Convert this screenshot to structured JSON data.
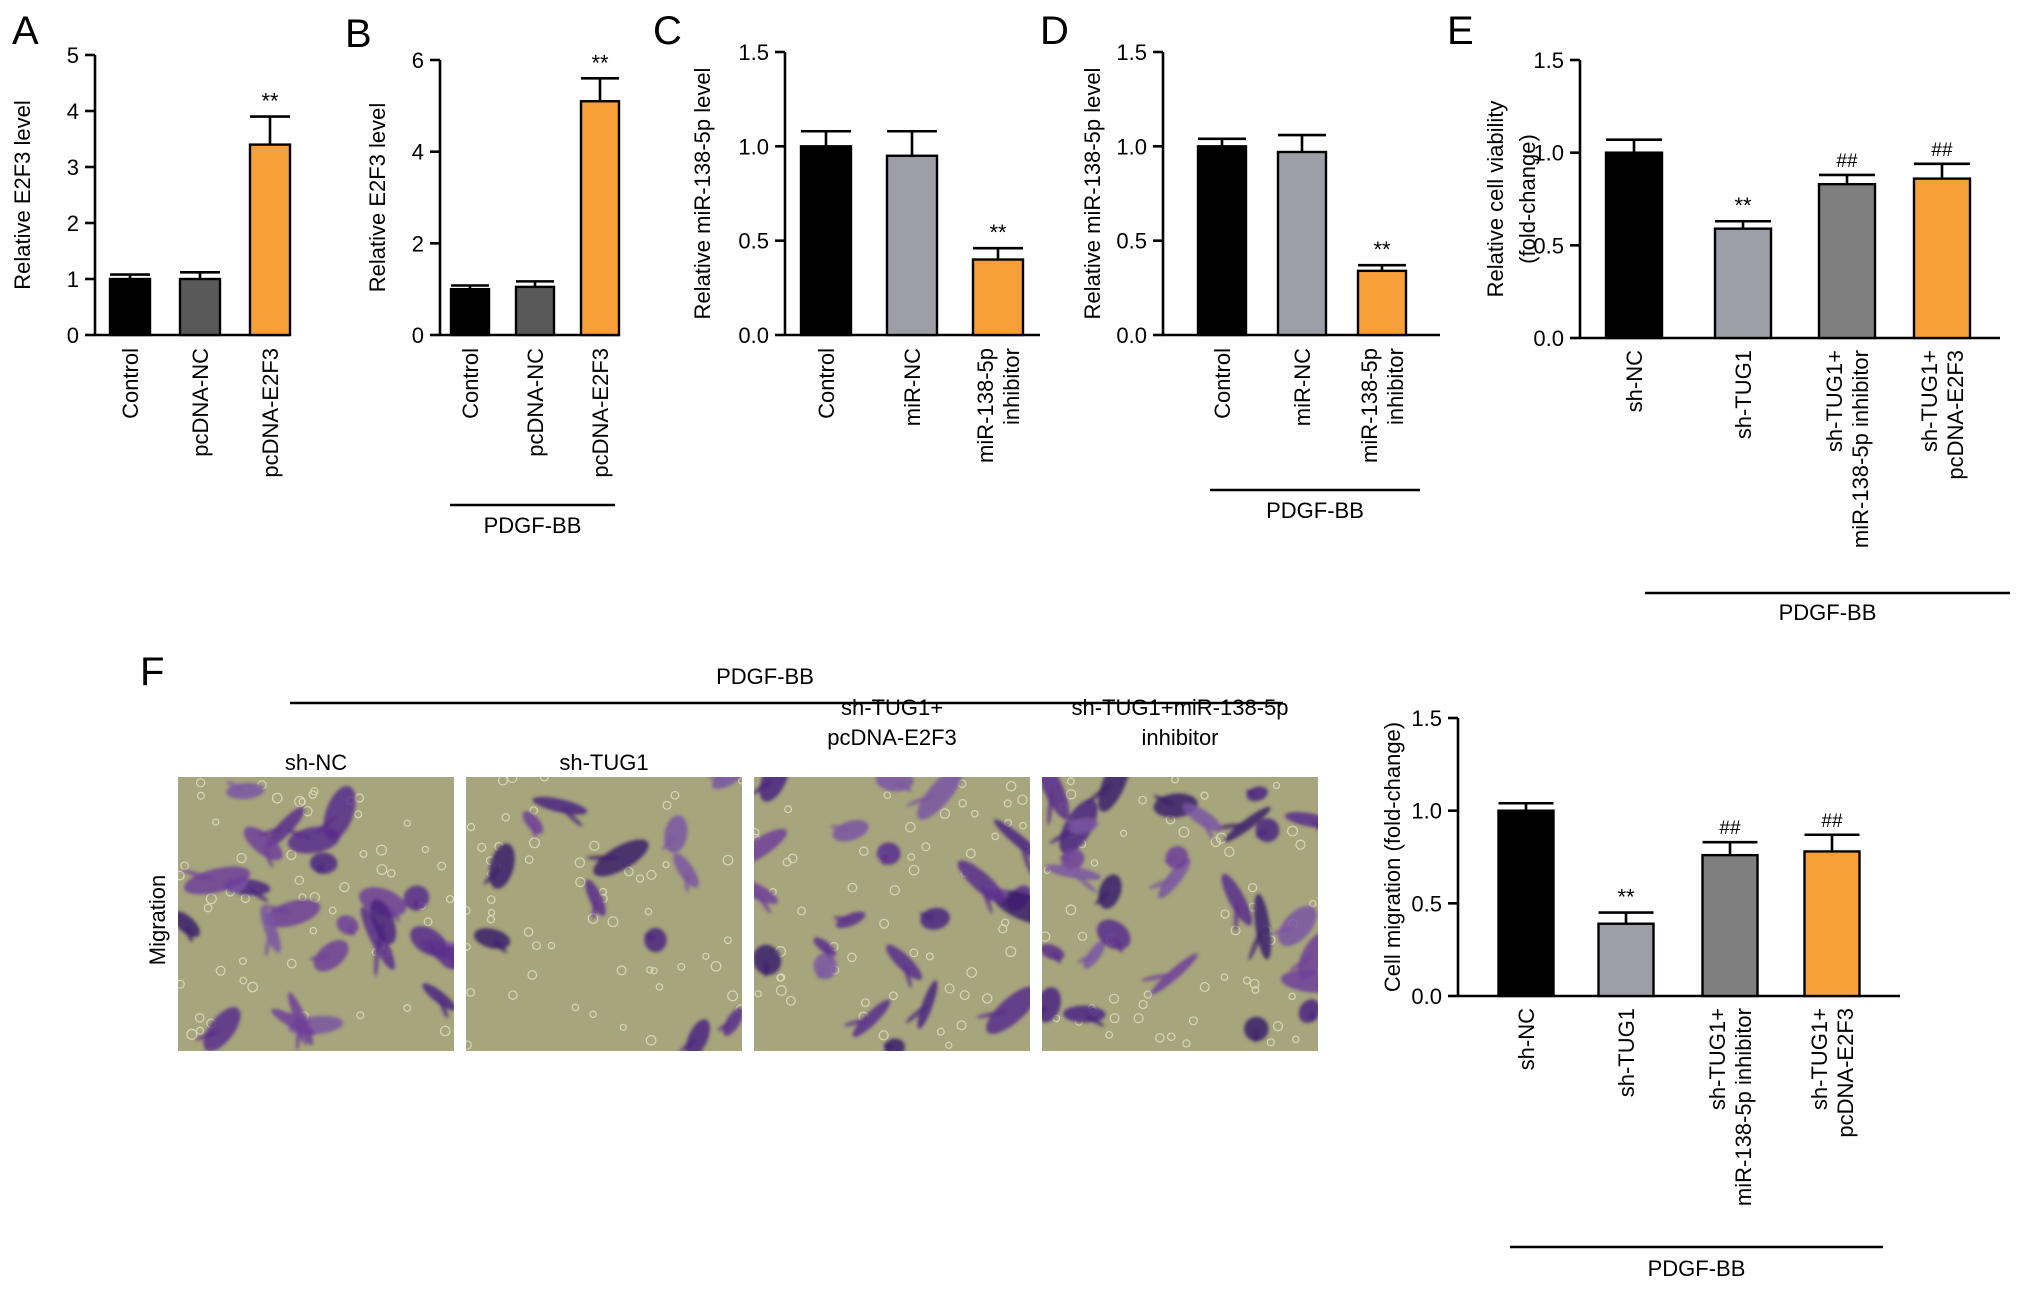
{
  "colors": {
    "black": "#000000",
    "dark_gray": "#595959",
    "mid_gray": "#7f7f7f",
    "light_gray": "#9e9ea6",
    "orange": "#f7a03a",
    "stain_background": "#a6a57c",
    "stain_cells": "#5b2d8c"
  },
  "panel_letters": [
    "A",
    "B",
    "C",
    "D",
    "E",
    "F"
  ],
  "micrographs": {
    "top_label": "PDGF-BB",
    "row_label": "Migration",
    "columns": [
      {
        "label_lines": [
          "sh-NC"
        ]
      },
      {
        "label_lines": [
          "sh-TUG1"
        ]
      },
      {
        "label_lines": [
          "sh-TUG1+",
          "pcDNA-E2F3"
        ]
      },
      {
        "label_lines": [
          "sh-TUG1+miR-138-5p",
          "inhibitor"
        ]
      }
    ]
  },
  "chart_data": [
    {
      "panel": "A",
      "type": "bar",
      "ylabel": "Relative E2F3 level",
      "ylim": [
        0,
        5
      ],
      "yticks": [
        "0",
        "1",
        "2",
        "3",
        "4",
        "5"
      ],
      "categories": [
        [
          "Control"
        ],
        [
          "pcDNA-NC"
        ],
        [
          "pcDNA-E2F3"
        ]
      ],
      "values": [
        1.0,
        1.0,
        3.4
      ],
      "errors": [
        0.08,
        0.12,
        0.5
      ],
      "annotations": [
        "",
        "",
        "**"
      ],
      "bar_colors": [
        "#000000",
        "#595959",
        "#f7a03a"
      ],
      "group_label": ""
    },
    {
      "panel": "B",
      "type": "bar",
      "ylabel": "Relative E2F3 level",
      "ylim": [
        0,
        6
      ],
      "yticks": [
        "0",
        "2",
        "4",
        "6"
      ],
      "categories": [
        [
          "Control"
        ],
        [
          "pcDNA-NC"
        ],
        [
          "pcDNA-E2F3"
        ]
      ],
      "values": [
        1.0,
        1.05,
        5.1
      ],
      "errors": [
        0.08,
        0.12,
        0.5
      ],
      "annotations": [
        "",
        "",
        "**"
      ],
      "bar_colors": [
        "#000000",
        "#595959",
        "#f7a03a"
      ],
      "group_label": "PDGF-BB"
    },
    {
      "panel": "C",
      "type": "bar",
      "ylabel": "Relative miR-138-5p level",
      "ylim": [
        0,
        1.5
      ],
      "yticks": [
        "0.0",
        "0.5",
        "1.0",
        "1.5"
      ],
      "categories": [
        [
          "Control"
        ],
        [
          "miR-NC"
        ],
        [
          "miR-138-5p",
          "inhibitor"
        ]
      ],
      "values": [
        1.0,
        0.95,
        0.4
      ],
      "errors": [
        0.08,
        0.13,
        0.06
      ],
      "annotations": [
        "",
        "",
        "**"
      ],
      "bar_colors": [
        "#000000",
        "#9e9ea6",
        "#f7a03a"
      ],
      "group_label": ""
    },
    {
      "panel": "D",
      "type": "bar",
      "ylabel": "Relative miR-138-5p level",
      "ylim": [
        0,
        1.5
      ],
      "yticks": [
        "0.0",
        "0.5",
        "1.0",
        "1.5"
      ],
      "categories": [
        [
          "Control"
        ],
        [
          "miR-NC"
        ],
        [
          "miR-138-5p",
          "inhibitor"
        ]
      ],
      "values": [
        1.0,
        0.97,
        0.34
      ],
      "errors": [
        0.04,
        0.09,
        0.03
      ],
      "annotations": [
        "",
        "",
        "**"
      ],
      "bar_colors": [
        "#000000",
        "#9e9ea6",
        "#f7a03a"
      ],
      "group_label": "PDGF-BB"
    },
    {
      "panel": "E",
      "type": "bar",
      "ylabel": "Relative cell viability",
      "ylabel2": "(fold-change)",
      "ylim": [
        0,
        1.5
      ],
      "yticks": [
        "0.0",
        "0.5",
        "1.0",
        "1.5"
      ],
      "categories": [
        [
          "sh-NC"
        ],
        [
          "sh-TUG1"
        ],
        [
          "sh-TUG1+",
          "miR-138-5p inhibitor"
        ],
        [
          "sh-TUG1+",
          "pcDNA-E2F3"
        ]
      ],
      "values": [
        1.0,
        0.59,
        0.83,
        0.86
      ],
      "errors": [
        0.07,
        0.04,
        0.05,
        0.08
      ],
      "annotations": [
        "",
        "**",
        "##",
        "##"
      ],
      "bar_colors": [
        "#000000",
        "#9e9ea6",
        "#7f7f7f",
        "#f7a03a"
      ],
      "group_label": "PDGF-BB"
    },
    {
      "panel": "F",
      "type": "bar",
      "ylabel": "Cell migration (fold-change)",
      "ylim": [
        0,
        1.5
      ],
      "yticks": [
        "0.0",
        "0.5",
        "1.0",
        "1.5"
      ],
      "categories": [
        [
          "sh-NC"
        ],
        [
          "sh-TUG1"
        ],
        [
          "sh-TUG1+",
          "miR-138-5p inhibitor"
        ],
        [
          "sh-TUG1+",
          "pcDNA-E2F3"
        ]
      ],
      "values": [
        1.0,
        0.39,
        0.76,
        0.78
      ],
      "errors": [
        0.04,
        0.06,
        0.07,
        0.09
      ],
      "annotations": [
        "",
        "**",
        "##",
        "##"
      ],
      "bar_colors": [
        "#000000",
        "#9e9ea6",
        "#7f7f7f",
        "#f7a03a"
      ],
      "group_label": "PDGF-BB"
    }
  ]
}
